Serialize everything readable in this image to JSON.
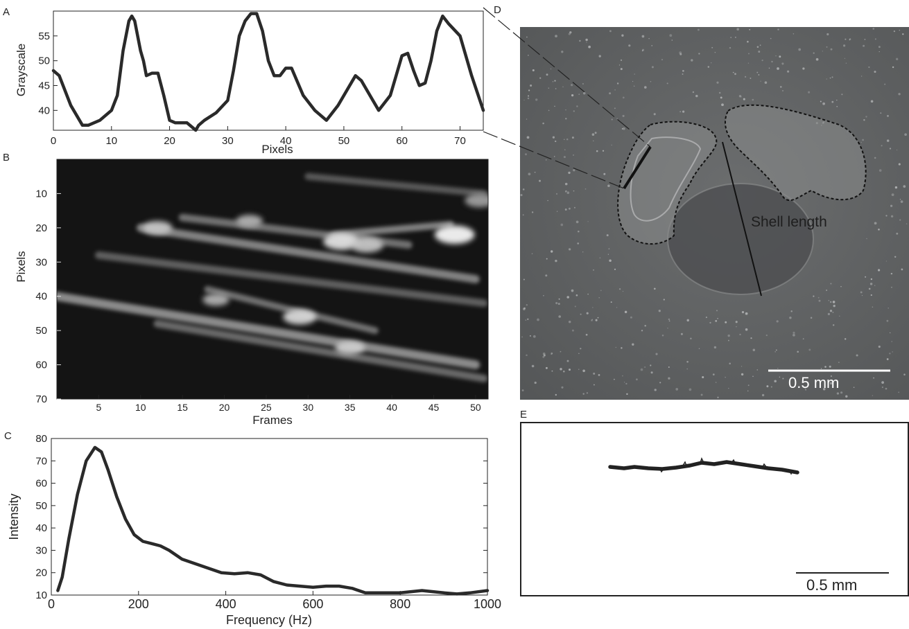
{
  "colors": {
    "curve": "#2a2a2a",
    "photo_bg": "#5f6162",
    "scale_bar_photo": "#ffffff",
    "scale_bar_trace": "#222222"
  },
  "panels": {
    "A": {
      "letter": "A"
    },
    "B": {
      "letter": "B"
    },
    "C": {
      "letter": "C"
    },
    "D": {
      "letter": "D",
      "annotation": "Shell length",
      "scale_label": "0.5 mm"
    },
    "E": {
      "letter": "E",
      "scale_label": "0.5 mm"
    }
  },
  "chart_data": [
    {
      "panel": "A",
      "type": "line",
      "title": "",
      "xlabel": "Pixels",
      "ylabel": "Grayscale",
      "xlim": [
        0,
        74
      ],
      "ylim": [
        36,
        60
      ],
      "xticks": [
        0,
        10,
        20,
        30,
        40,
        50,
        60,
        70
      ],
      "yticks": [
        40,
        45,
        50,
        55
      ],
      "grid": false,
      "series": [
        {
          "x": [
            0,
            1,
            3,
            5,
            6,
            8,
            10,
            11,
            12,
            13,
            13.5,
            14,
            15,
            15.5,
            16,
            17,
            18,
            19,
            20,
            21,
            22,
            23,
            24,
            24.5,
            25,
            26,
            28,
            30,
            31,
            32,
            33,
            34,
            35,
            36,
            37,
            38,
            39,
            40,
            41,
            43,
            45,
            47,
            49,
            51,
            52,
            53,
            55,
            56,
            58,
            59,
            60,
            61,
            62,
            63,
            64,
            65,
            66,
            67,
            68,
            70,
            72,
            74
          ],
          "y": [
            48,
            47,
            41,
            37,
            37,
            38,
            40,
            43,
            52,
            58,
            59,
            58,
            52,
            50,
            47,
            47.5,
            47.5,
            43,
            38,
            37.5,
            37.5,
            37.5,
            36.5,
            36,
            37,
            38,
            39.5,
            42,
            48,
            55,
            58,
            59.5,
            59.5,
            56,
            50,
            47,
            47,
            48.5,
            48.5,
            43,
            40,
            38,
            41,
            45,
            47,
            46,
            42,
            40,
            43,
            47,
            51,
            51.5,
            48,
            45,
            45.5,
            50,
            56,
            59,
            57.5,
            55,
            47,
            40
          ]
        }
      ]
    },
    {
      "panel": "B",
      "type": "heatmap",
      "title": "",
      "xlabel": "Frames",
      "ylabel": "Pixels",
      "xlim": [
        0,
        51.5
      ],
      "ylim": [
        70,
        0
      ],
      "xticks": [
        5,
        10,
        15,
        20,
        25,
        30,
        35,
        40,
        45,
        50
      ],
      "yticks": [
        10,
        20,
        30,
        40,
        50,
        60,
        70
      ],
      "colormap": "grayscale",
      "streaks": [
        {
          "x0": 10,
          "y0": 20,
          "x1": 50,
          "y1": 35,
          "width": 2.4,
          "intensity": 0.55
        },
        {
          "x0": 15,
          "y0": 17,
          "x1": 42,
          "y1": 25,
          "width": 2.2,
          "intensity": 0.45
        },
        {
          "x0": 33,
          "y0": 22,
          "x1": 47,
          "y1": 19,
          "width": 2.0,
          "intensity": 0.55
        },
        {
          "x0": 5,
          "y0": 28,
          "x1": 51,
          "y1": 42,
          "width": 2.2,
          "intensity": 0.35
        },
        {
          "x0": 0,
          "y0": 40,
          "x1": 50,
          "y1": 60,
          "width": 2.6,
          "intensity": 0.6
        },
        {
          "x0": 12,
          "y0": 48,
          "x1": 51,
          "y1": 64,
          "width": 2.2,
          "intensity": 0.4
        },
        {
          "x0": 18,
          "y0": 38,
          "x1": 38,
          "y1": 50,
          "width": 2.0,
          "intensity": 0.45
        },
        {
          "x0": 30,
          "y0": 5,
          "x1": 51,
          "y1": 10,
          "width": 2.0,
          "intensity": 0.3
        }
      ],
      "hotspots": [
        {
          "x": 12,
          "y": 20,
          "r": 1.8,
          "intensity": 0.7
        },
        {
          "x": 23,
          "y": 18,
          "r": 1.6,
          "intensity": 0.6
        },
        {
          "x": 34,
          "y": 24,
          "r": 2.2,
          "intensity": 0.85
        },
        {
          "x": 37,
          "y": 25,
          "r": 2.0,
          "intensity": 0.7
        },
        {
          "x": 47.5,
          "y": 22,
          "r": 2.4,
          "intensity": 0.95
        },
        {
          "x": 50.5,
          "y": 12,
          "r": 1.8,
          "intensity": 0.5
        },
        {
          "x": 29,
          "y": 46,
          "r": 2.0,
          "intensity": 0.8
        },
        {
          "x": 35,
          "y": 55,
          "r": 1.8,
          "intensity": 0.75
        },
        {
          "x": 19,
          "y": 41,
          "r": 1.6,
          "intensity": 0.6
        }
      ]
    },
    {
      "panel": "C",
      "type": "line",
      "title": "",
      "xlabel": "Frequency (Hz)",
      "ylabel": "Intensity",
      "xlim": [
        0,
        1000
      ],
      "ylim": [
        10,
        80
      ],
      "xticks": [
        0,
        200,
        400,
        600,
        800,
        1000
      ],
      "yticks": [
        10,
        20,
        30,
        40,
        50,
        60,
        70,
        80
      ],
      "grid": false,
      "series": [
        {
          "x": [
            15,
            25,
            40,
            60,
            80,
            100,
            115,
            130,
            150,
            170,
            190,
            210,
            230,
            250,
            270,
            300,
            330,
            360,
            390,
            420,
            450,
            480,
            510,
            540,
            570,
            600,
            630,
            660,
            690,
            720,
            760,
            800,
            850,
            900,
            930,
            960,
            1000
          ],
          "y": [
            12,
            18,
            35,
            55,
            70,
            76,
            74,
            66,
            54,
            44,
            37,
            34,
            33,
            32,
            30,
            26,
            24,
            22,
            20,
            19.5,
            20,
            19,
            16,
            14.5,
            14,
            13.5,
            14,
            14,
            13,
            11,
            11,
            11,
            12,
            11,
            10.5,
            11,
            12
          ]
        }
      ]
    }
  ]
}
